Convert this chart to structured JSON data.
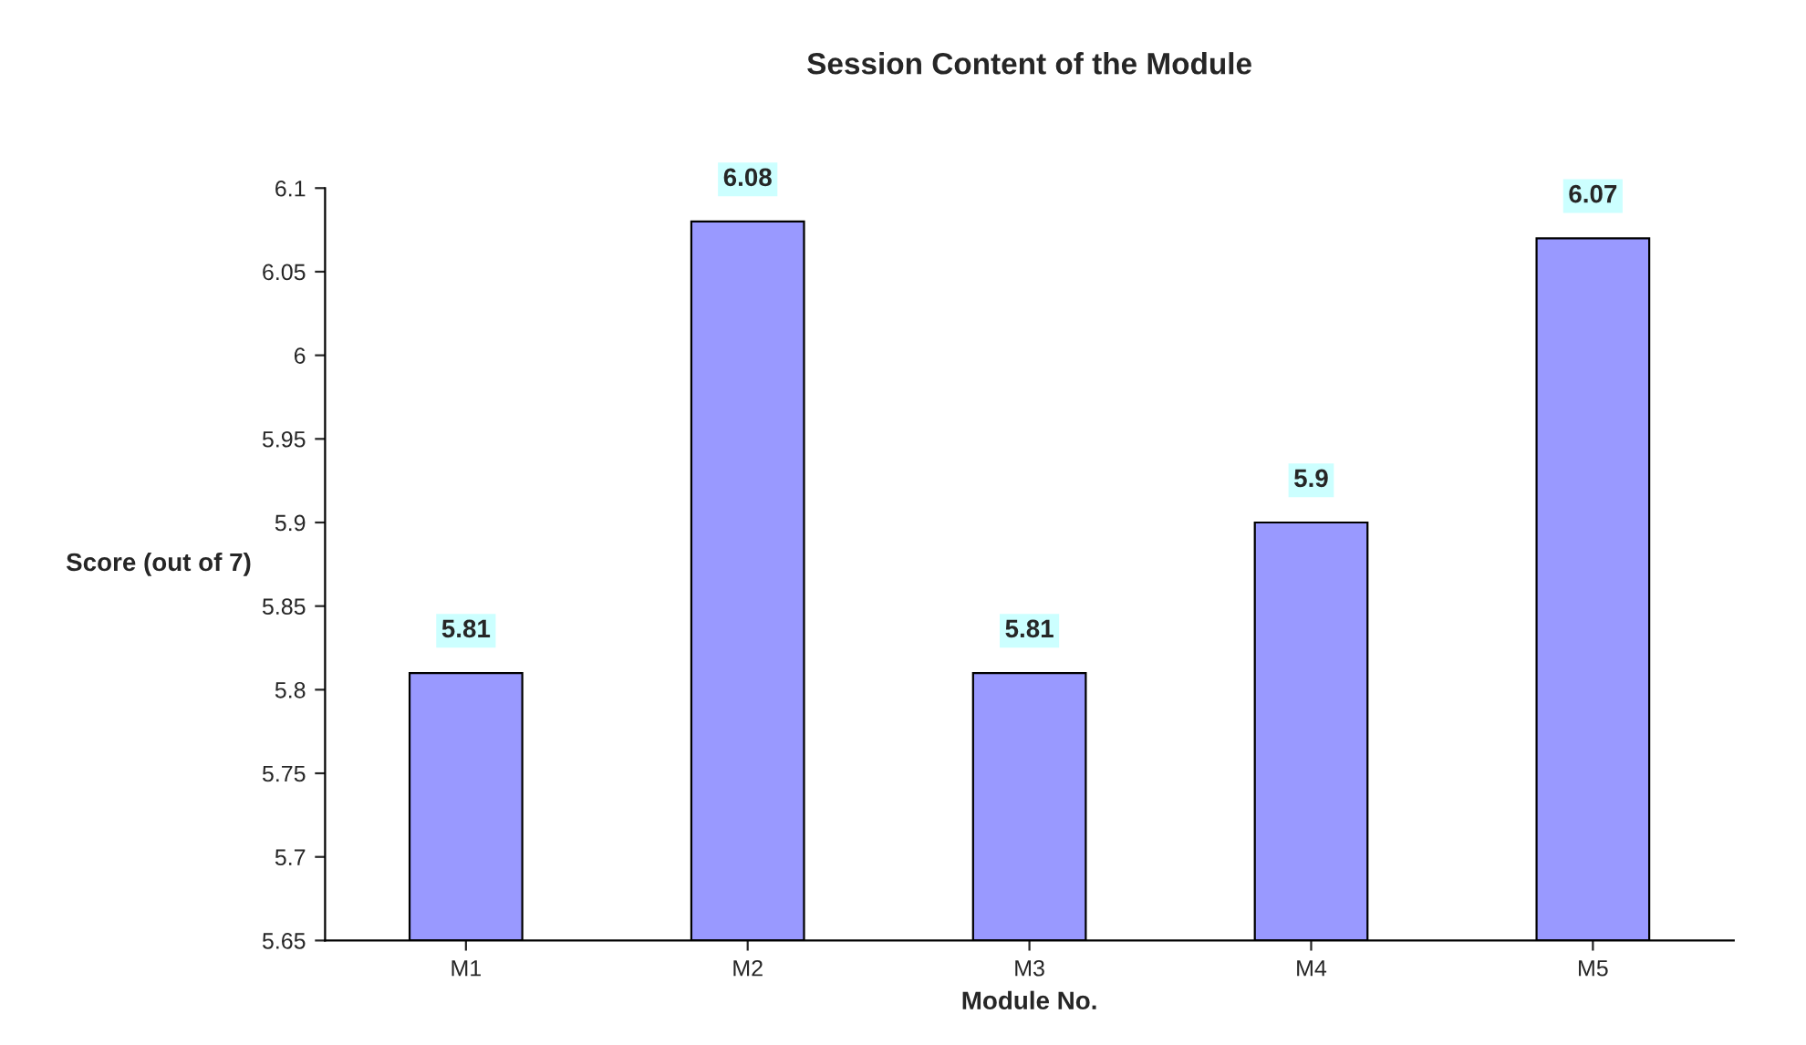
{
  "chart_data": {
    "type": "bar",
    "title": "Session Content of the Module",
    "xlabel": "Module No.",
    "ylabel": "Score (out of 7)",
    "categories": [
      "M1",
      "M2",
      "M3",
      "M4",
      "M5"
    ],
    "values": [
      5.81,
      6.08,
      5.81,
      5.9,
      6.07
    ],
    "color": "#9999ff",
    "ylim": [
      5.65,
      6.1
    ],
    "yticks": [
      5.65,
      5.7,
      5.75,
      5.8,
      5.85,
      5.9,
      5.95,
      6,
      6.05,
      6.1
    ],
    "data_labels": true,
    "grid": false,
    "legend": false
  }
}
